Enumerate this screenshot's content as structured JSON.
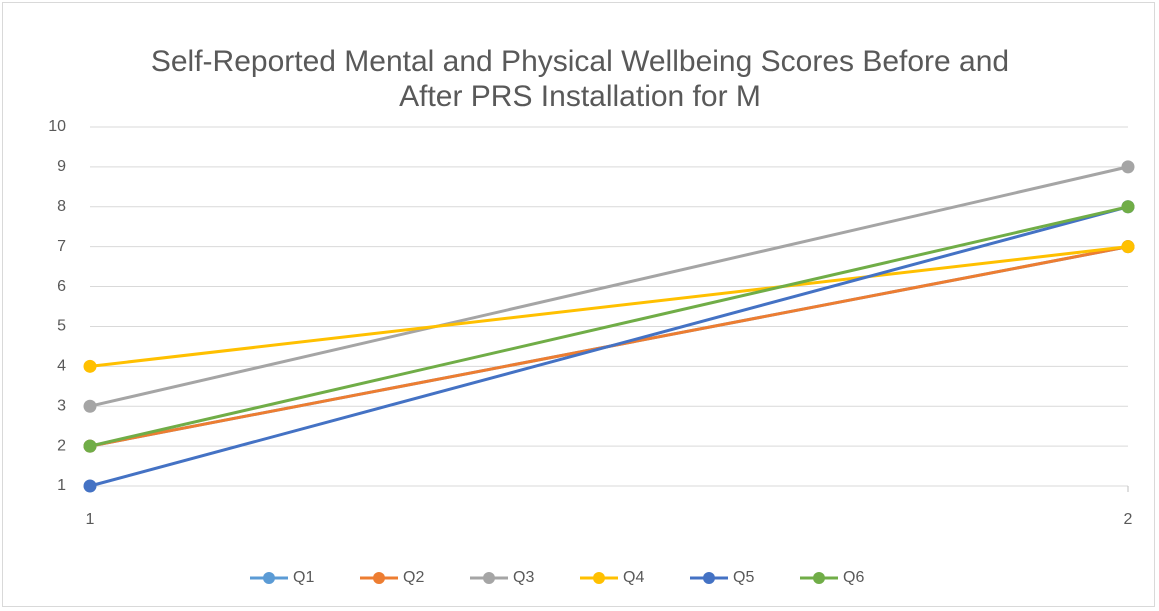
{
  "chart_data": {
    "type": "line",
    "title": "Self-Reported Mental and Physical Wellbeing Scores Before and After PRS Installation for M",
    "x": [
      1,
      2
    ],
    "xlim": [
      1,
      2
    ],
    "xticks": [
      1,
      2
    ],
    "ylim": [
      1,
      10
    ],
    "yticks": [
      1,
      2,
      3,
      4,
      5,
      6,
      7,
      8,
      9,
      10
    ],
    "grid": true,
    "legend": "bottom",
    "series": [
      {
        "name": "Q1",
        "color": "#5b9bd5",
        "values": [
          2,
          7
        ]
      },
      {
        "name": "Q2",
        "color": "#ed7d31",
        "values": [
          2,
          7
        ]
      },
      {
        "name": "Q3",
        "color": "#a5a5a5",
        "values": [
          3,
          9
        ]
      },
      {
        "name": "Q4",
        "color": "#ffc000",
        "values": [
          4,
          7
        ]
      },
      {
        "name": "Q5",
        "color": "#4472c4",
        "values": [
          1,
          8
        ]
      },
      {
        "name": "Q6",
        "color": "#70ad47",
        "values": [
          2,
          8
        ]
      }
    ]
  }
}
